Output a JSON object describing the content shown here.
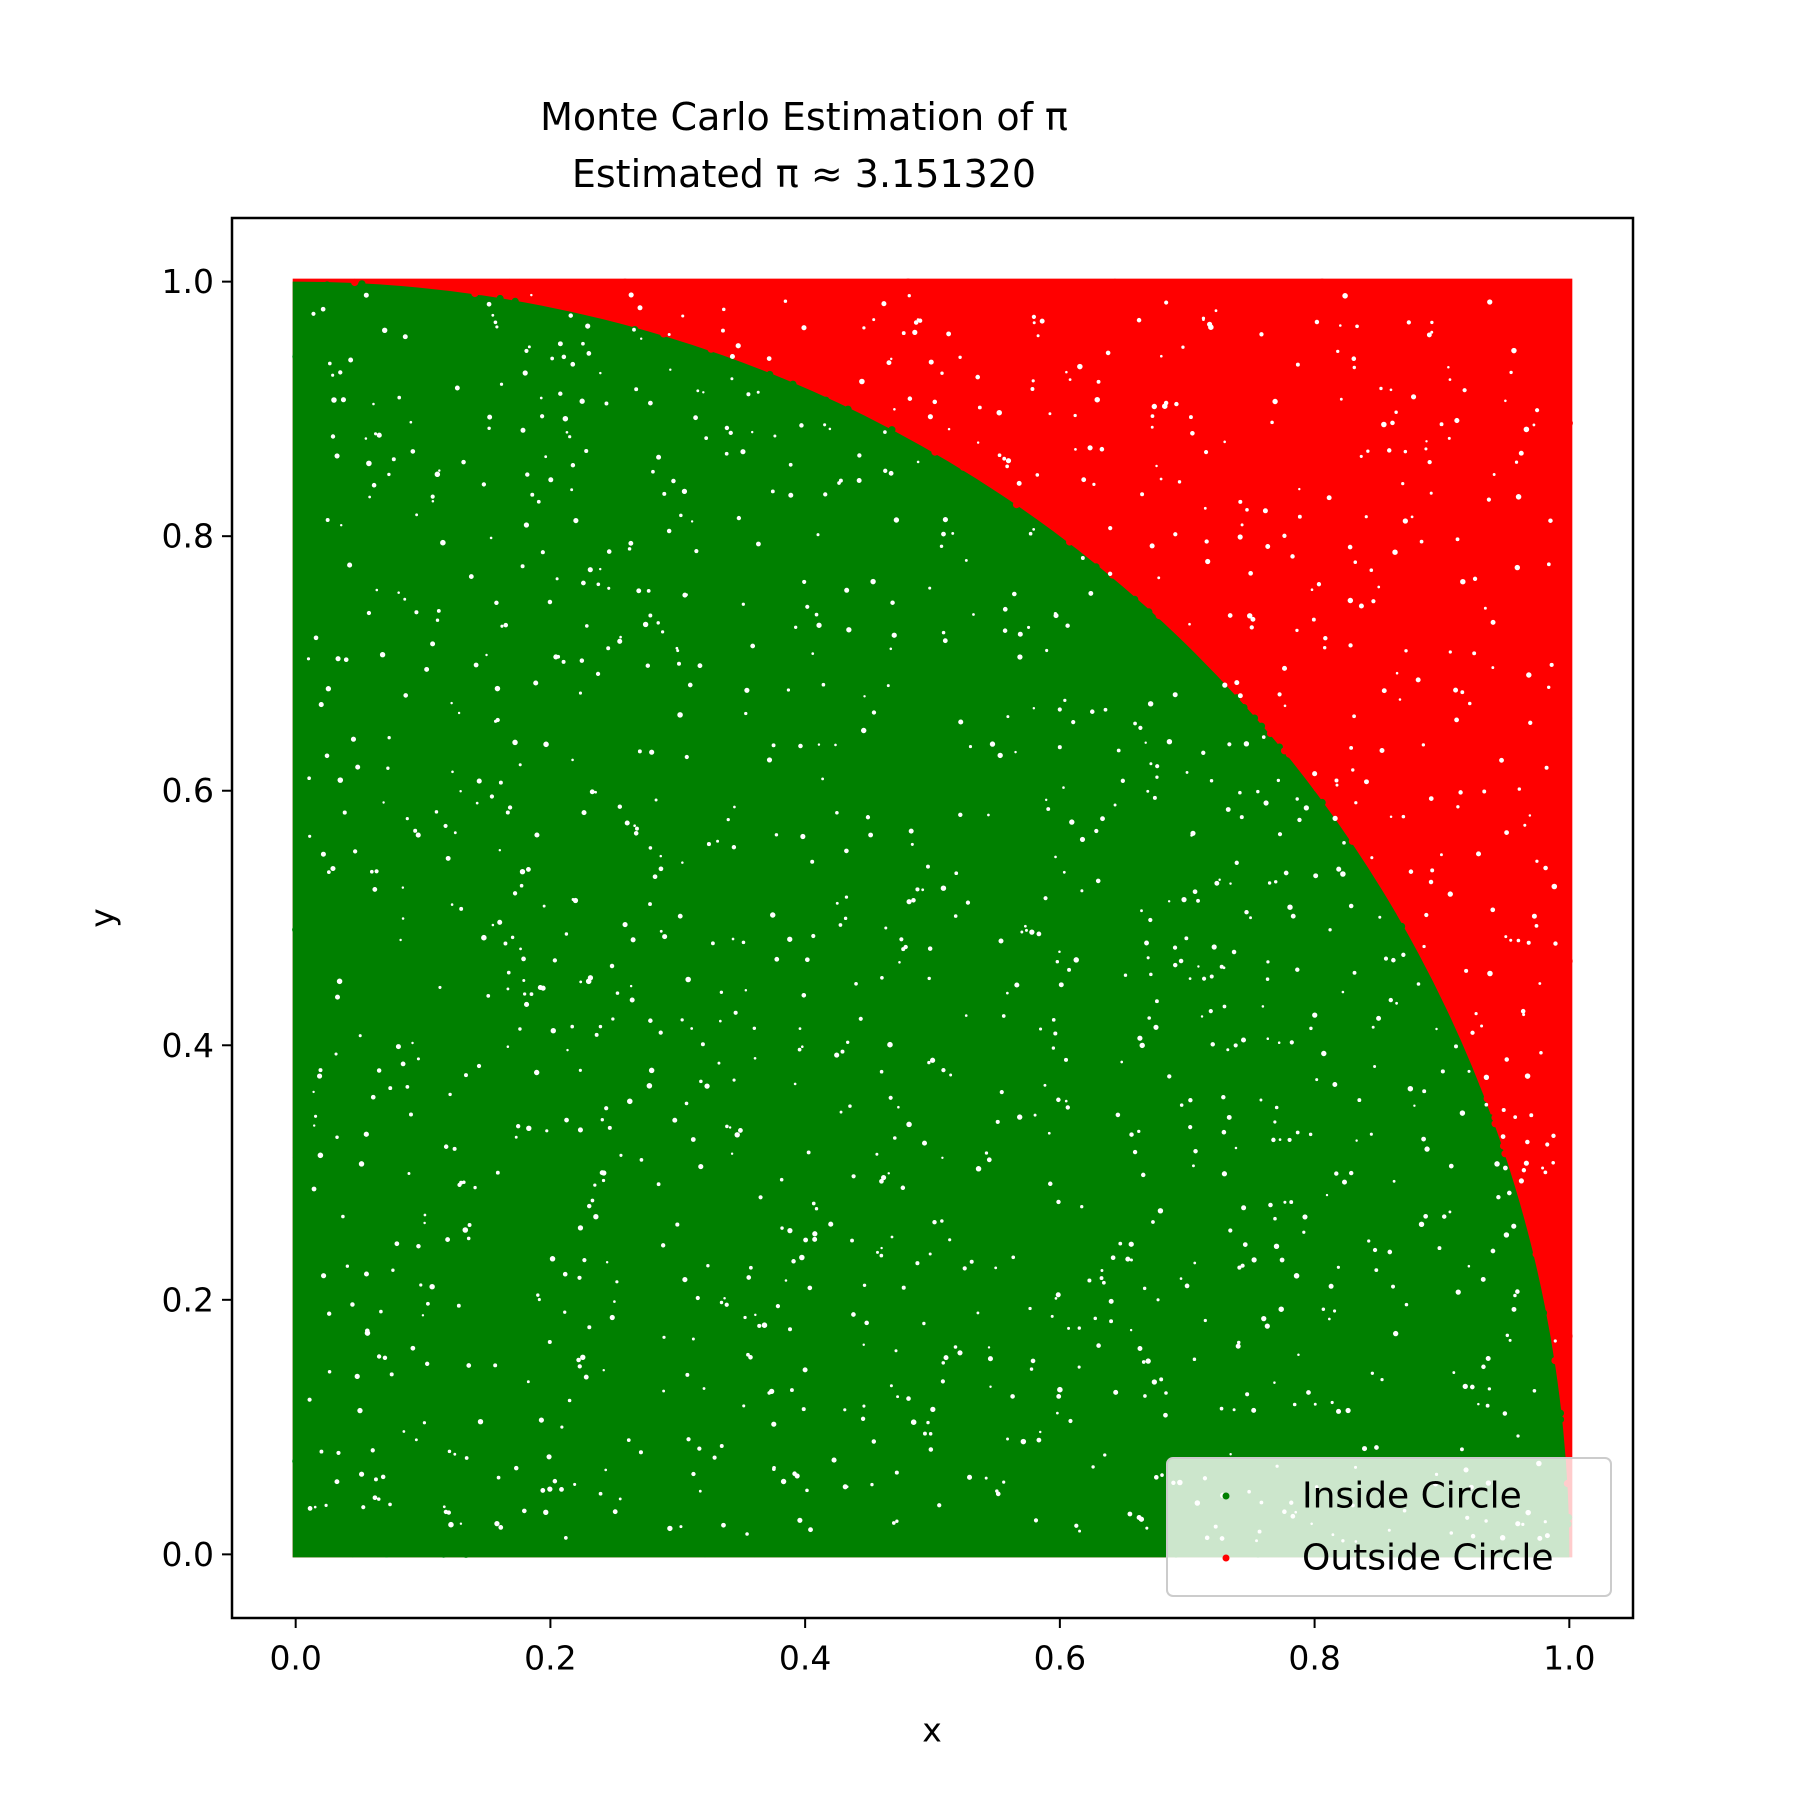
{
  "chart_data": {
    "type": "scatter",
    "title_line1": "Monte Carlo Estimation of π",
    "title_line2": "Estimated π ≈ 3.151320",
    "xlabel": "x",
    "ylabel": "y",
    "xlim": [
      -0.05,
      1.05
    ],
    "ylim": [
      -0.05,
      1.05
    ],
    "x_ticks": [
      "0.0",
      "0.2",
      "0.4",
      "0.6",
      "0.8",
      "1.0"
    ],
    "y_ticks": [
      "0.0",
      "0.2",
      "0.4",
      "0.6",
      "0.8",
      "1.0"
    ],
    "x_tick_values": [
      0.0,
      0.2,
      0.4,
      0.6,
      0.8,
      1.0
    ],
    "y_tick_values": [
      0.0,
      0.2,
      0.4,
      0.6,
      0.8,
      1.0
    ],
    "estimated_pi": 3.15132,
    "x_range": [
      0.0,
      1.0
    ],
    "y_range": [
      0.0,
      1.0
    ],
    "boundary": "x^2 + y^2 = 1",
    "series": [
      {
        "name": "Inside Circle",
        "color": "#008000",
        "region": "x^2 + y^2 <= 1"
      },
      {
        "name": "Outside Circle",
        "color": "#ff0000",
        "region": "x^2 + y^2 > 1"
      }
    ],
    "legend_position": "lower-right",
    "grid": false
  }
}
